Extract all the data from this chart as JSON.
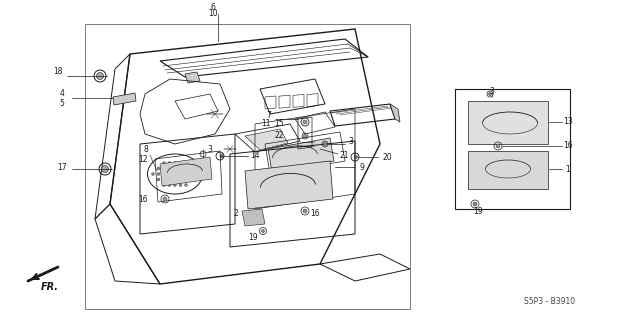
{
  "bg_color": "#ffffff",
  "line_color": "#1a1a1a",
  "diagram_code": "S5P3 - B3910",
  "fig_width": 6.4,
  "fig_height": 3.19,
  "dpi": 100
}
